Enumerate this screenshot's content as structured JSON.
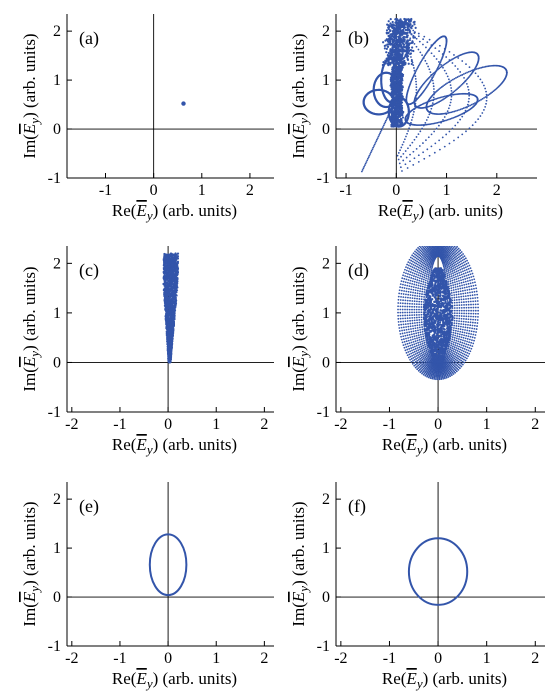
{
  "figure": {
    "panels": [
      "a",
      "b",
      "c",
      "d",
      "e",
      "f"
    ]
  },
  "chart_data": [
    {
      "type": "scatter",
      "panel_label": "(a)",
      "xlabel": "Re(E_y) (arb. units)",
      "ylabel": "Im(E_y) (arb. units)",
      "xlim": [
        -1.8,
        2.5
      ],
      "ylim": [
        -1,
        2.35
      ],
      "xticks": [
        "-1",
        "0",
        "1",
        "2"
      ],
      "xtick_values": [
        -1,
        0,
        1,
        2
      ],
      "yticks": [
        "-1",
        "0",
        "1",
        "2"
      ],
      "ytick_values": [
        -1,
        0,
        1,
        2
      ],
      "style": "single-point",
      "color": "#3355aa",
      "points": [
        [
          0.62,
          0.52
        ]
      ]
    },
    {
      "type": "scatter",
      "panel_label": "(b)",
      "xlabel": "Re(E_y) (arb. units)",
      "ylabel": "Im(E_y) (arb. units)",
      "xlim": [
        -1.2,
        2.8
      ],
      "ylim": [
        -1,
        2.35
      ],
      "xticks": [
        "-1",
        "0",
        "1",
        "2"
      ],
      "xtick_values": [
        -1,
        0,
        1,
        2
      ],
      "yticks": [
        "-1",
        "0",
        "1",
        "2"
      ],
      "ytick_values": [
        -1,
        0,
        1,
        2
      ],
      "style": "dotted-loops",
      "color": "#3355aa",
      "region": {
        "x": [
          -0.7,
          2.2
        ],
        "y": [
          -0.9,
          2.3
        ]
      }
    },
    {
      "type": "scatter",
      "panel_label": "(c)",
      "xlabel": "Re(E_y) (arb. units)",
      "ylabel": "Im(E_y) (arb. units)",
      "xlim": [
        -2.1,
        2.2
      ],
      "ylim": [
        -1,
        2.35
      ],
      "xticks": [
        "-2",
        "-1",
        "0",
        "1",
        "2"
      ],
      "xtick_values": [
        -2,
        -1,
        0,
        1,
        2
      ],
      "yticks": [
        "-1",
        "0",
        "1",
        "2"
      ],
      "ytick_values": [
        -1,
        0,
        1,
        2
      ],
      "style": "dense-narrow",
      "color": "#3355aa",
      "region": {
        "x": [
          -0.1,
          0.22
        ],
        "y": [
          0.0,
          2.2
        ]
      }
    },
    {
      "type": "scatter",
      "panel_label": "(d)",
      "xlabel": "Re(E_y) (arb. units)",
      "ylabel": "Im(E_y) (arb. units)",
      "xlim": [
        -2.1,
        2.2
      ],
      "ylim": [
        -1,
        2.35
      ],
      "xticks": [
        "-2",
        "-1",
        "0",
        "1",
        "2"
      ],
      "xtick_values": [
        -2,
        -1,
        0,
        1,
        2
      ],
      "yticks": [
        "-1",
        "0",
        "1",
        "2"
      ],
      "ytick_values": [
        -1,
        0,
        1,
        2
      ],
      "style": "dense-wide",
      "color": "#3355aa",
      "region": {
        "x": [
          -0.85,
          0.9
        ],
        "y": [
          -0.15,
          2.2
        ]
      }
    },
    {
      "type": "line",
      "panel_label": "(e)",
      "xlabel": "Re(E_y) (arb. units)",
      "ylabel": "Im(E_y) (arb. units)",
      "xlim": [
        -2.1,
        2.2
      ],
      "ylim": [
        -1,
        2.35
      ],
      "xticks": [
        "-2",
        "-1",
        "0",
        "1",
        "2"
      ],
      "xtick_values": [
        -2,
        -1,
        0,
        1,
        2
      ],
      "yticks": [
        "-1",
        "0",
        "1",
        "2"
      ],
      "ytick_values": [
        -1,
        0,
        1,
        2
      ],
      "style": "ellipse",
      "color": "#3355aa",
      "ellipse": {
        "cx": 0.0,
        "cy": 0.66,
        "rx": 0.38,
        "ry": 0.62
      }
    },
    {
      "type": "line",
      "panel_label": "(f)",
      "xlabel": "Re(E_y) (arb. units)",
      "ylabel": "Im(E_y) (arb. units)",
      "xlim": [
        -2.1,
        2.2
      ],
      "ylim": [
        -1,
        2.35
      ],
      "xticks": [
        "-2",
        "-1",
        "0",
        "1",
        "2"
      ],
      "xtick_values": [
        -2,
        -1,
        0,
        1,
        2
      ],
      "yticks": [
        "-1",
        "0",
        "1",
        "2"
      ],
      "ytick_values": [
        -1,
        0,
        1,
        2
      ],
      "style": "ellipse",
      "color": "#3355aa",
      "ellipse": {
        "cx": 0.0,
        "cy": 0.52,
        "rx": 0.6,
        "ry": 0.68
      }
    }
  ]
}
